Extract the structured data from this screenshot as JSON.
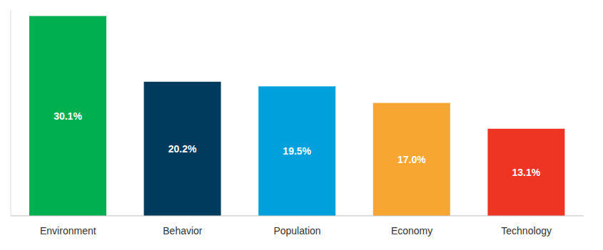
{
  "chart_data": {
    "type": "bar",
    "categories": [
      "Environment",
      "Behavior",
      "Population",
      "Economy",
      "Technology"
    ],
    "values": [
      30.1,
      20.2,
      19.5,
      17.0,
      13.1
    ],
    "value_labels": [
      "30.1%",
      "20.2%",
      "19.5%",
      "17.0%",
      "13.1%"
    ],
    "colors": [
      "#00b050",
      "#003a5c",
      "#00a0dc",
      "#f7a731",
      "#ee3524"
    ],
    "ylim": [
      0,
      31
    ],
    "data_labels": true,
    "tick_labels": "x",
    "grid": false
  }
}
